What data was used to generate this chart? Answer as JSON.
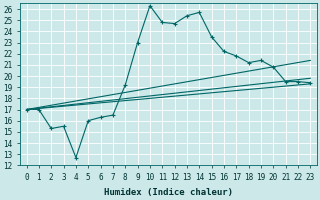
{
  "xlabel": "Humidex (Indice chaleur)",
  "bg_color": "#cce8e8",
  "grid_color": "#b8d8d8",
  "line_color": "#006666",
  "xlim": [
    -0.5,
    23.5
  ],
  "ylim": [
    12,
    26.5
  ],
  "yticks": [
    12,
    13,
    14,
    15,
    16,
    17,
    18,
    19,
    20,
    21,
    22,
    23,
    24,
    25,
    26
  ],
  "xticks": [
    0,
    1,
    2,
    3,
    4,
    5,
    6,
    7,
    8,
    9,
    10,
    11,
    12,
    13,
    14,
    15,
    16,
    17,
    18,
    19,
    20,
    21,
    22,
    23
  ],
  "main_series": {
    "x": [
      0,
      1,
      2,
      3,
      4,
      5,
      6,
      7,
      8,
      9,
      10,
      11,
      12,
      13,
      14,
      15,
      16,
      17,
      18,
      19,
      20,
      21,
      22,
      23
    ],
    "y": [
      17,
      17,
      15.3,
      15.5,
      12.7,
      16.0,
      16.3,
      16.5,
      19.2,
      23.0,
      26.3,
      24.8,
      24.7,
      25.4,
      25.7,
      23.5,
      22.2,
      21.8,
      21.2,
      21.4,
      20.8,
      19.5,
      19.5,
      19.4
    ]
  },
  "trend_lines": [
    {
      "x": [
        0,
        23
      ],
      "y": [
        17,
        21.4
      ]
    },
    {
      "x": [
        0,
        23
      ],
      "y": [
        17,
        19.8
      ]
    },
    {
      "x": [
        0,
        23
      ],
      "y": [
        17,
        19.3
      ]
    }
  ],
  "figsize": [
    3.2,
    2.0
  ],
  "dpi": 100
}
